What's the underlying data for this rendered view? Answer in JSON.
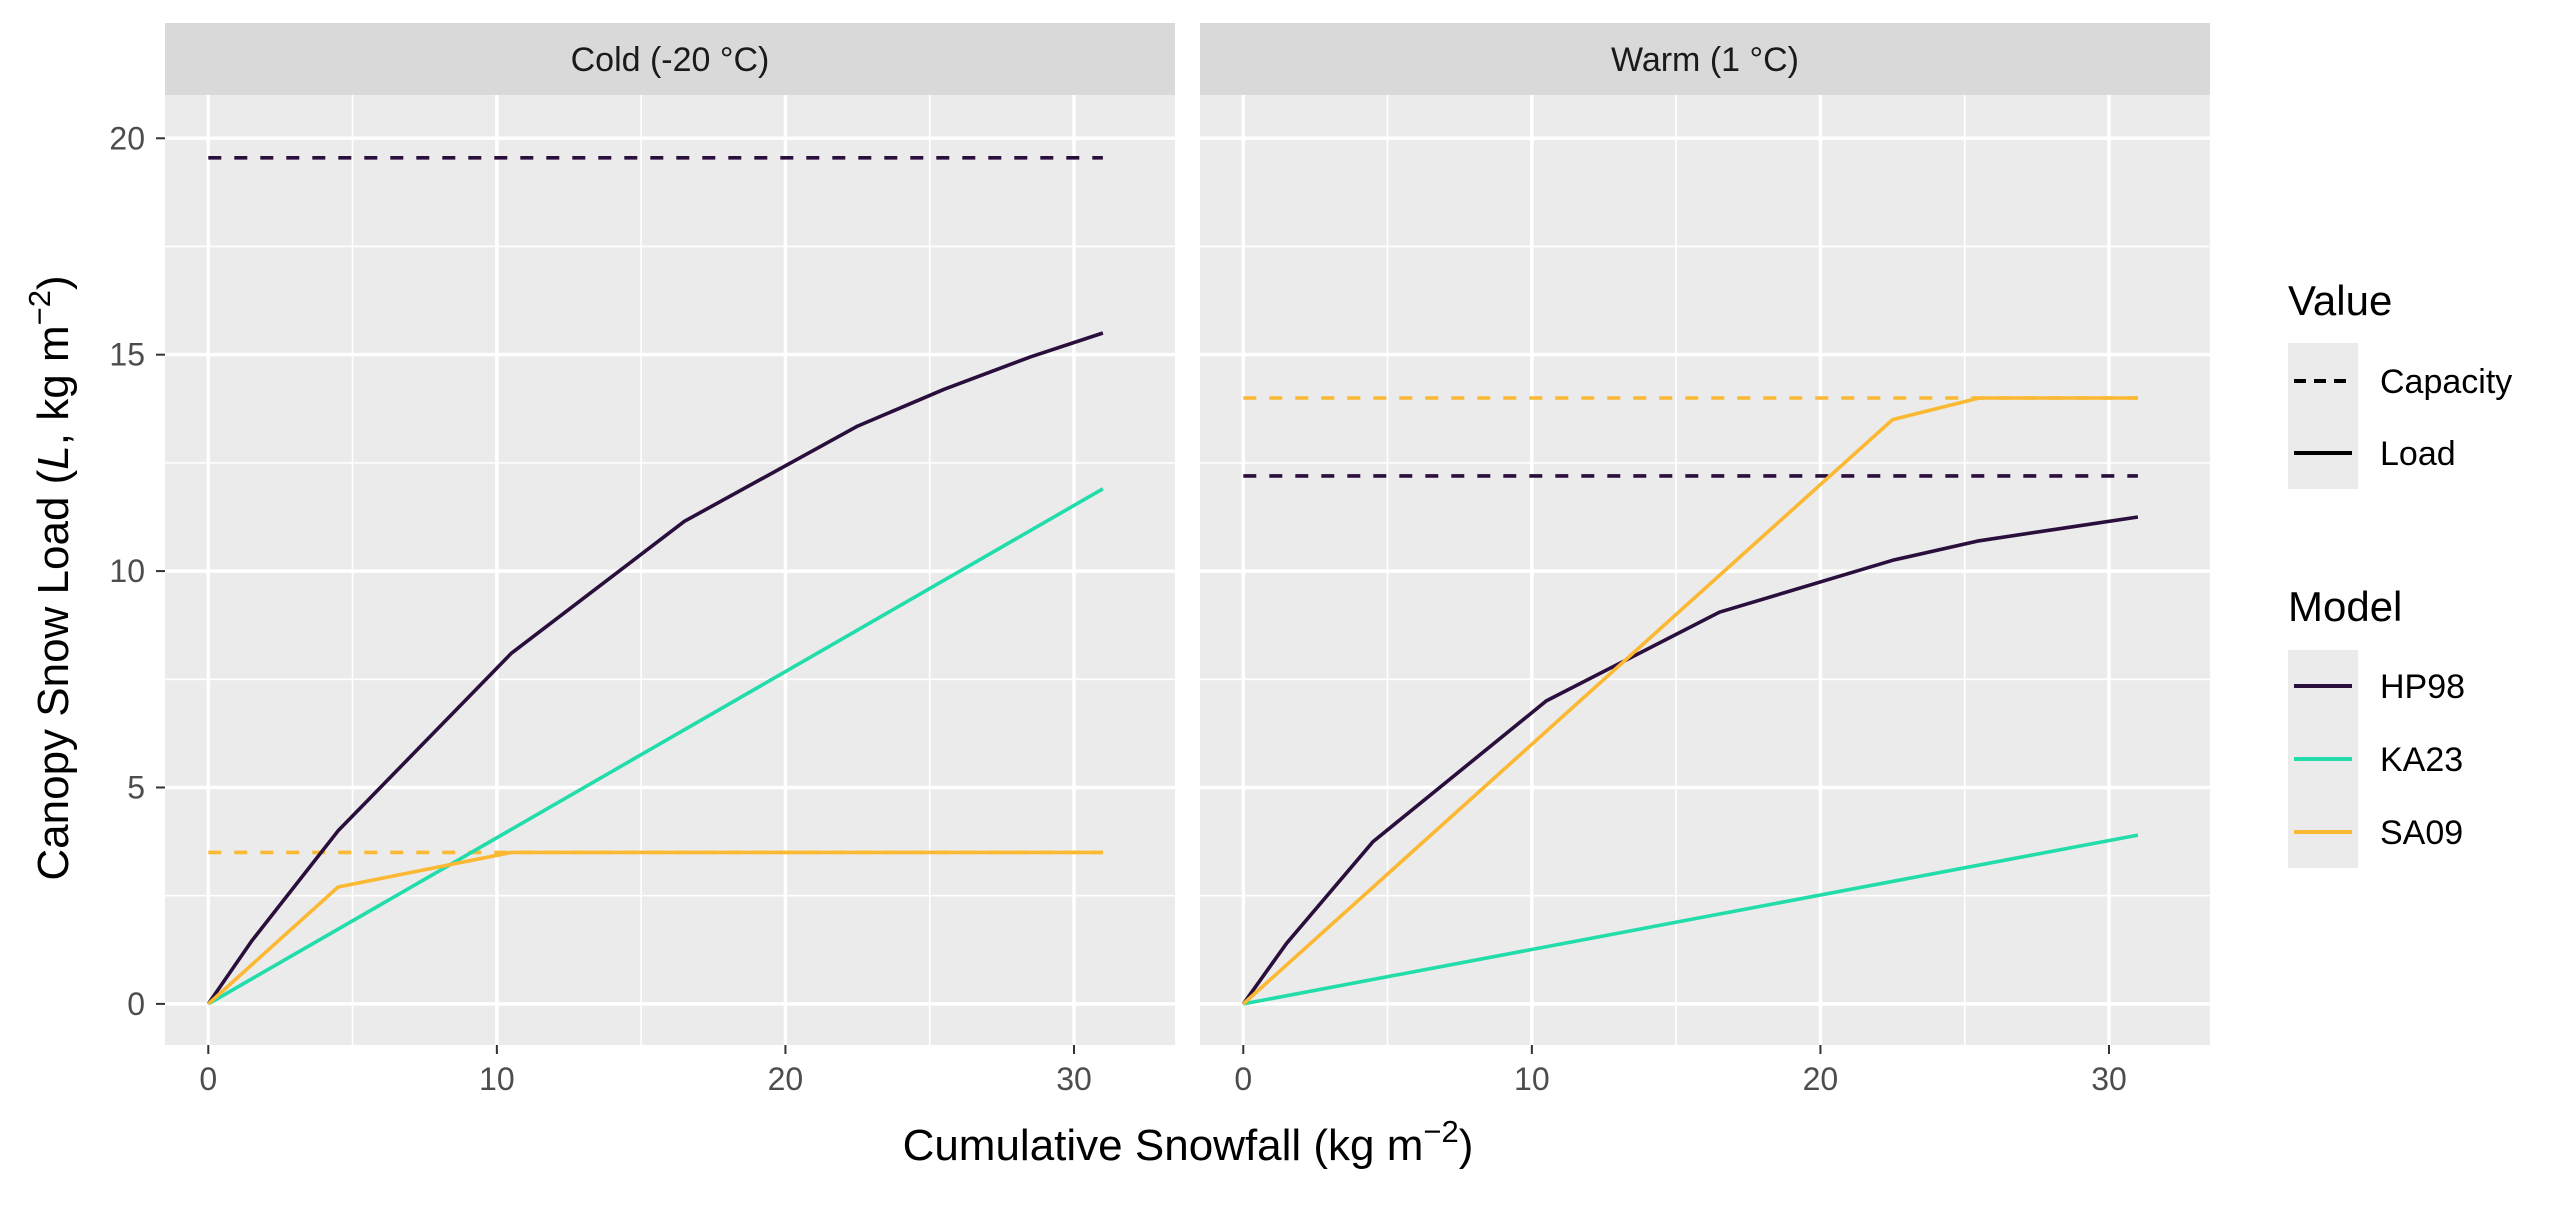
{
  "chart_data": {
    "type": "line",
    "xlabel": "Cumulative Snowfall (kg m",
    "xlabel_sup": "−2",
    "xlabel_end": ")",
    "ylabel_parts": {
      "a": "Canopy Snow Load (",
      "italic": "L",
      "b": ", kg m",
      "sup": "−2",
      "c": ")"
    },
    "xlim": [
      -1.5,
      33.5
    ],
    "ylim": [
      -0.95,
      21.0
    ],
    "x_ticks": [
      0,
      10,
      20,
      30
    ],
    "y_ticks": [
      0,
      5,
      10,
      15,
      20
    ],
    "grid": true,
    "legend_position": "right",
    "legends": {
      "value": {
        "title": "Value",
        "items": [
          {
            "label": "Capacity",
            "linetype": "dashed"
          },
          {
            "label": "Load",
            "linetype": "solid"
          }
        ]
      },
      "model": {
        "title": "Model",
        "items": [
          {
            "label": "HP98",
            "color": "#2a0e3c"
          },
          {
            "label": "KA23",
            "color": "#22dcaa"
          },
          {
            "label": "SA09",
            "color": "#fbb832"
          }
        ]
      }
    },
    "panels": [
      {
        "strip": "Cold (-20 °C)",
        "series": [
          {
            "model": "HP98",
            "value": "Capacity",
            "x": [
              0,
              31
            ],
            "y": [
              19.55,
              19.55
            ]
          },
          {
            "model": "SA09",
            "value": "Capacity",
            "x": [
              0,
              31
            ],
            "y": [
              3.5,
              3.5
            ]
          },
          {
            "model": "HP98",
            "value": "Load",
            "x": [
              0,
              1.5,
              4.5,
              10.5,
              16.5,
              22.5,
              25.5,
              28.5,
              31
            ],
            "y": [
              0,
              1.45,
              4.0,
              8.1,
              11.15,
              13.35,
              14.2,
              14.95,
              15.5
            ]
          },
          {
            "model": "KA23",
            "value": "Load",
            "x": [
              0,
              31
            ],
            "y": [
              0,
              11.9
            ]
          },
          {
            "model": "SA09",
            "value": "Load",
            "x": [
              0,
              4.5,
              10.5,
              31
            ],
            "y": [
              0,
              2.7,
              3.5,
              3.5
            ]
          }
        ]
      },
      {
        "strip": "Warm (1 °C)",
        "series": [
          {
            "model": "SA09",
            "value": "Capacity",
            "x": [
              0,
              31
            ],
            "y": [
              14.0,
              14.0
            ]
          },
          {
            "model": "HP98",
            "value": "Capacity",
            "x": [
              0,
              31
            ],
            "y": [
              12.2,
              12.2
            ]
          },
          {
            "model": "HP98",
            "value": "Load",
            "x": [
              0,
              1.5,
              4.5,
              10.5,
              16.5,
              22.5,
              25.5,
              28.5,
              31
            ],
            "y": [
              0,
              1.4,
              3.75,
              7.0,
              9.05,
              10.25,
              10.7,
              11.0,
              11.25
            ]
          },
          {
            "model": "KA23",
            "value": "Load",
            "x": [
              0,
              31
            ],
            "y": [
              0,
              3.9
            ]
          },
          {
            "model": "SA09",
            "value": "Load",
            "x": [
              0,
              22.5,
              25.5,
              31
            ],
            "y": [
              0,
              13.5,
              14.0,
              14.0
            ]
          }
        ]
      }
    ]
  }
}
